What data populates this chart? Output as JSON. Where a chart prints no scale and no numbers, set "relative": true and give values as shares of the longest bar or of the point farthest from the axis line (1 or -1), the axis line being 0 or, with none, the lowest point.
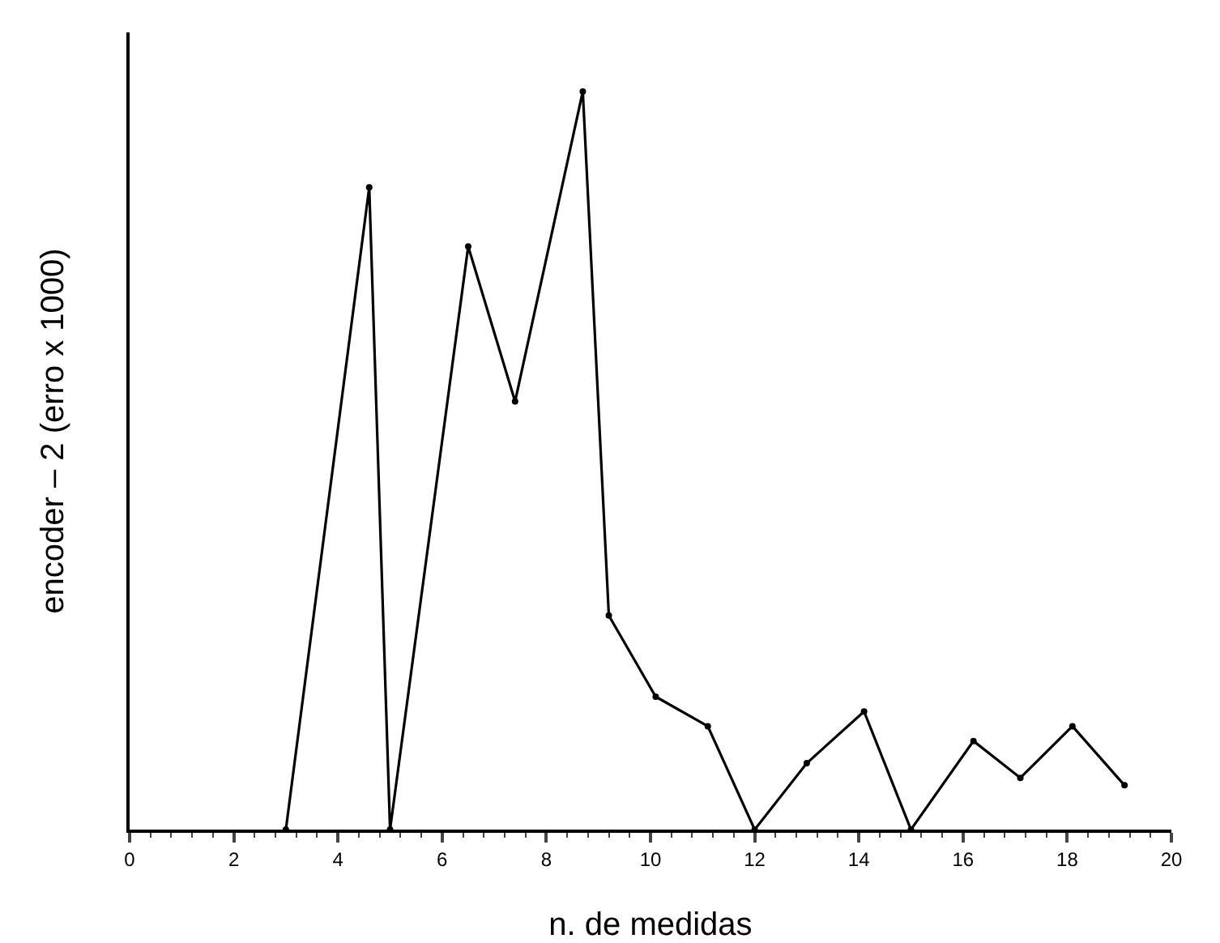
{
  "chart_data": {
    "type": "line",
    "xlabel": "n. de medidas",
    "ylabel": "encoder – 2 (erro x 1000)",
    "relative": true,
    "x": [
      3,
      4.6,
      5,
      6.5,
      7.4,
      8.7,
      9.2,
      10.1,
      11.1,
      12,
      13,
      14.1,
      15,
      16.2,
      17.1,
      18.1,
      19.1
    ],
    "series": [
      {
        "color": "#000000",
        "values": [
          0,
          0.87,
          0,
          0.79,
          0.58,
          1,
          0.29,
          0.18,
          0.14,
          0,
          0.09,
          0.16,
          0,
          0.12,
          0.07,
          0.14,
          0.06
        ]
      }
    ],
    "xlim": [
      0,
      20
    ],
    "xticks": [
      0,
      2,
      4,
      6,
      8,
      10,
      12,
      14,
      16,
      18,
      20
    ],
    "marker": "circle",
    "line_style": "solid"
  }
}
